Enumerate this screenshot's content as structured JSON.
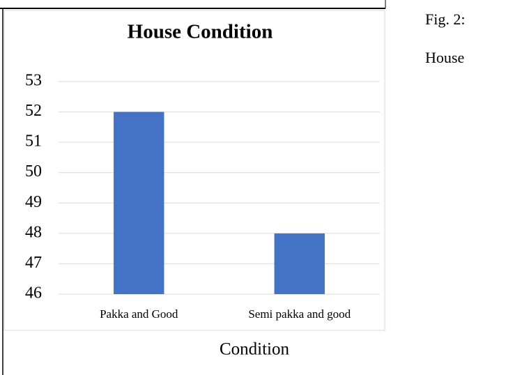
{
  "chart_data": {
    "type": "bar",
    "title": "House Condition",
    "categories": [
      "Pakka and Good",
      "Semi pakka and good"
    ],
    "values": [
      52,
      48
    ],
    "color": "#4472c4",
    "x_label": "Condition",
    "ylim": [
      46,
      53
    ],
    "yticks": [
      46,
      47,
      48,
      49,
      50,
      51,
      52,
      53
    ],
    "grid": true
  },
  "caption": [
    "Fig. 2:",
    "House"
  ]
}
